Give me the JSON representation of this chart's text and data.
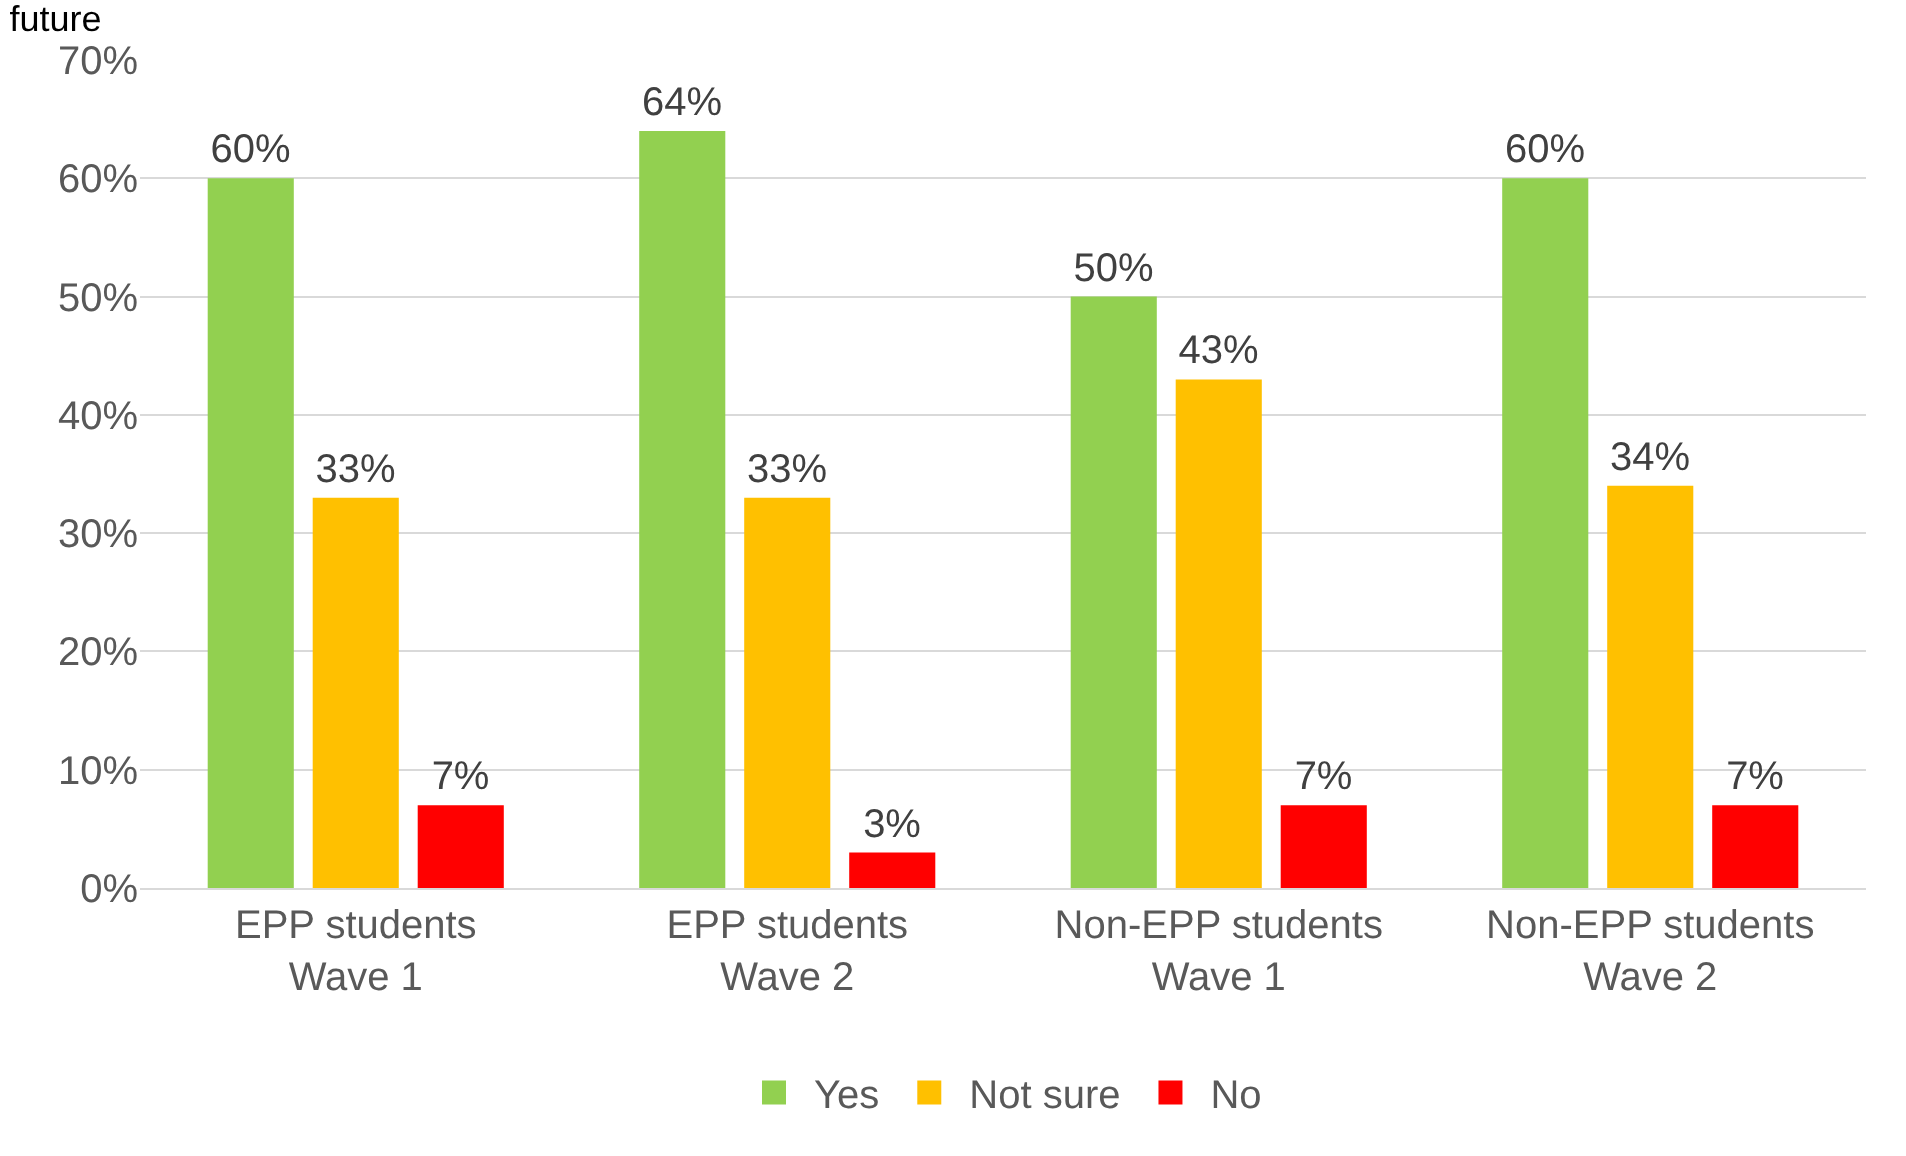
{
  "chart_data": {
    "type": "bar",
    "title": "future",
    "categories": [
      "EPP students\nWave 1",
      "EPP students\nWave 2",
      "Non-EPP students\nWave 1",
      "Non-EPP students\nWave 2"
    ],
    "series": [
      {
        "name": "Yes",
        "color": "#92d050",
        "values": [
          60,
          64,
          50,
          60
        ],
        "value_labels": [
          "60%",
          "64%",
          "50%",
          "60%"
        ]
      },
      {
        "name": "Not sure",
        "color": "#ffc000",
        "values": [
          33,
          33,
          43,
          34
        ],
        "value_labels": [
          "33%",
          "33%",
          "43%",
          "34%"
        ]
      },
      {
        "name": "No",
        "color": "#ff0000",
        "values": [
          7,
          3,
          7,
          7
        ],
        "value_labels": [
          "7%",
          "3%",
          "7%",
          "7%"
        ]
      }
    ],
    "ylim": [
      0,
      70
    ],
    "yticks": [
      {
        "value": 0,
        "label": "0%"
      },
      {
        "value": 10,
        "label": "10%"
      },
      {
        "value": 20,
        "label": "20%"
      },
      {
        "value": 30,
        "label": "30%"
      },
      {
        "value": 40,
        "label": "40%"
      },
      {
        "value": 50,
        "label": "50%"
      },
      {
        "value": 60,
        "label": "60%"
      },
      {
        "value": 70,
        "label": "70%"
      }
    ],
    "grid": "y",
    "legend": "bottom"
  }
}
